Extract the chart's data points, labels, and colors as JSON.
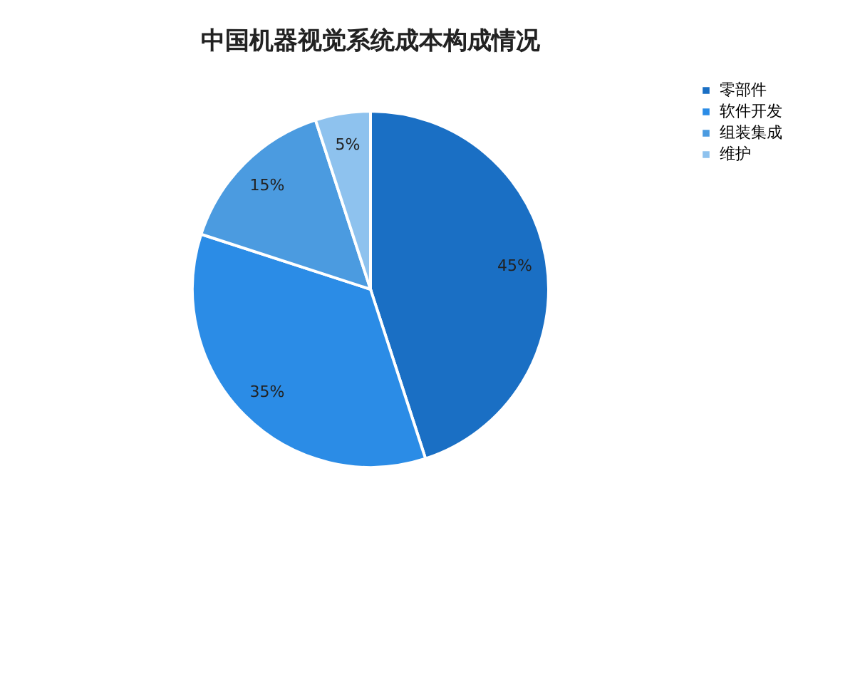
{
  "chart_data": {
    "type": "pie",
    "title": "中国机器视觉系统成本构成情况",
    "categories": [
      "零部件",
      "软件开发",
      "组装集成",
      "维护"
    ],
    "values": [
      45,
      35,
      15,
      5
    ],
    "colors": [
      "#1a6fc4",
      "#2b8ce6",
      "#4b9be0",
      "#8ec2ee"
    ],
    "value_labels": [
      "45%",
      "35%",
      "15%",
      "5%"
    ],
    "legend": "right"
  }
}
